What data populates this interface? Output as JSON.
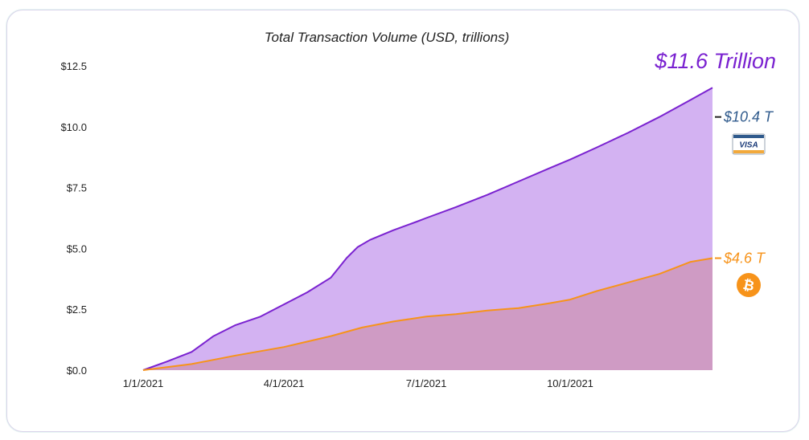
{
  "chart_data": {
    "type": "area",
    "title": "Total Transaction Volume (USD, trillions)",
    "xlabel": "",
    "ylabel": "",
    "x_ticks": [
      "1/1/2021",
      "4/1/2021",
      "7/1/2021",
      "10/1/2021"
    ],
    "x_tick_days": [
      0,
      90,
      181,
      273
    ],
    "xlim_days": [
      0,
      364
    ],
    "y_ticks": [
      "$0.0",
      "$2.5",
      "$5.0",
      "$7.5",
      "$10.0",
      "$12.5"
    ],
    "y_tick_values": [
      0,
      2.5,
      5.0,
      7.5,
      10.0,
      12.5
    ],
    "ylim": [
      0,
      12.5
    ],
    "grid": false,
    "total_label": "$11.6 Trillion",
    "series": [
      {
        "name": "Total",
        "color": "#7a22d0",
        "fill": "#d3b2f2",
        "days": [
          0,
          15,
          31,
          45,
          59,
          75,
          90,
          105,
          120,
          125,
          130,
          137,
          145,
          160,
          175,
          181,
          200,
          220,
          240,
          260,
          273,
          290,
          310,
          330,
          350,
          364
        ],
        "values": [
          0,
          0.35,
          0.75,
          1.4,
          1.85,
          2.2,
          2.7,
          3.2,
          3.8,
          4.2,
          4.6,
          5.05,
          5.35,
          5.75,
          6.1,
          6.25,
          6.7,
          7.2,
          7.75,
          8.3,
          8.65,
          9.15,
          9.75,
          10.4,
          11.1,
          11.6
        ]
      },
      {
        "name": "Visa",
        "label": "$10.4 T",
        "color": "#2f5a8c",
        "end_value": 10.4
      },
      {
        "name": "Bitcoin",
        "label": "$4.6 T",
        "color": "#f7931a",
        "fill": "#cf9bc4",
        "days": [
          0,
          31,
          59,
          90,
          120,
          140,
          160,
          181,
          200,
          220,
          240,
          260,
          273,
          290,
          310,
          330,
          340,
          350,
          364
        ],
        "values": [
          0,
          0.25,
          0.6,
          0.95,
          1.4,
          1.75,
          2.0,
          2.2,
          2.3,
          2.45,
          2.55,
          2.75,
          2.9,
          3.25,
          3.6,
          3.95,
          4.2,
          4.45,
          4.6
        ]
      }
    ],
    "icons": [
      "visa-card-icon",
      "bitcoin-icon"
    ]
  }
}
